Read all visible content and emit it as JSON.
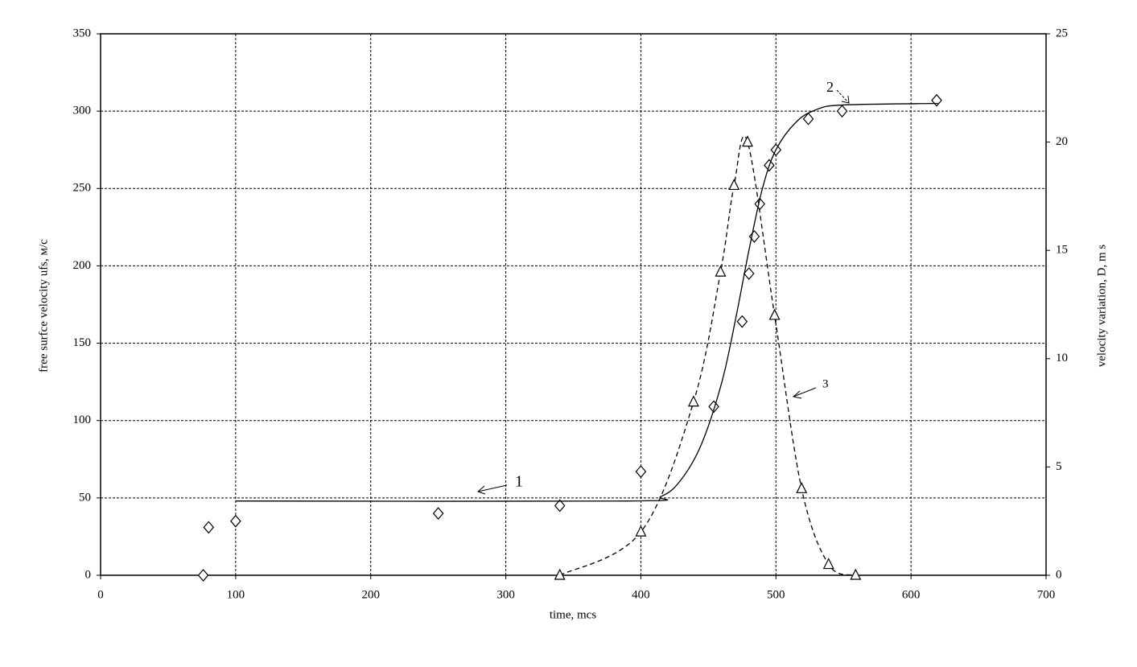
{
  "chart_data": {
    "type": "scatter",
    "xlabel": "time, mcs",
    "ylabel": "free surfce velocity  ufs, м/с",
    "y2label": "velocity variation, D, m s",
    "xlim": [
      0,
      700
    ],
    "xticks": [
      0,
      100,
      200,
      300,
      400,
      500,
      600,
      700
    ],
    "ylim": [
      0,
      350
    ],
    "yticks": [
      0,
      50,
      100,
      150,
      200,
      250,
      300,
      350
    ],
    "y2lim": [
      0,
      25
    ],
    "y2ticks": [
      0,
      5,
      10,
      15,
      20,
      25
    ],
    "grid": true,
    "series": [
      {
        "marker": "diamond",
        "line": "none",
        "color": "#000000",
        "x": [
          76,
          80,
          100,
          250,
          340,
          400,
          454,
          475,
          480,
          484,
          488,
          495,
          500,
          524,
          549,
          619
        ],
        "values": [
          0,
          31,
          35,
          40,
          45,
          67,
          109,
          164,
          195,
          219,
          240,
          265,
          275,
          295,
          300,
          307
        ]
      },
      {
        "marker": "triangle",
        "line": "dashed",
        "axis": "y2",
        "color": "#000000",
        "x": [
          340,
          400,
          439,
          459,
          469,
          479,
          499,
          519,
          539,
          559
        ],
        "values": [
          0,
          2,
          8,
          14,
          18,
          20,
          12,
          4,
          0.5,
          0
        ]
      },
      {
        "marker": "none",
        "line": "solid",
        "color": "#000000",
        "x": [
          100,
          390,
          415,
          430,
          445,
          460,
          470,
          480,
          490,
          500,
          515,
          530,
          550,
          620
        ],
        "values": [
          48,
          48,
          51,
          62,
          85,
          125,
          165,
          210,
          250,
          275,
          293,
          301,
          304,
          305
        ]
      }
    ],
    "annotations": [
      "1",
      "2",
      "3"
    ]
  }
}
